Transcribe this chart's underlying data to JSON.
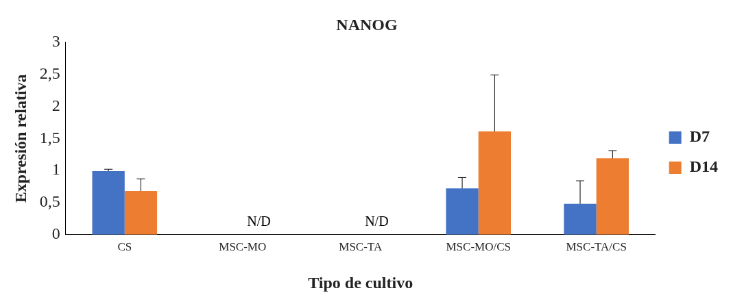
{
  "chart_data": {
    "type": "bar",
    "title": "NANOG",
    "xlabel": "Tipo de cultivo",
    "ylabel": "Expresión relativa",
    "categories": [
      "CS",
      "MSC-MO",
      "MSC-TA",
      "MSC-MO/CS",
      "MSC-TA/CS"
    ],
    "series": [
      {
        "name": "D7",
        "color": "#4472c4",
        "values": [
          0.99,
          null,
          null,
          0.72,
          0.48
        ],
        "errors": [
          [
            0.99,
            1.02
          ],
          null,
          null,
          [
            0.72,
            0.89
          ],
          [
            0.48,
            0.84
          ]
        ]
      },
      {
        "name": "D14",
        "color": "#ed7d31",
        "values": [
          0.68,
          null,
          null,
          1.61,
          1.19
        ],
        "errors": [
          [
            0.68,
            0.87
          ],
          null,
          null,
          [
            1.61,
            2.49
          ],
          [
            1.19,
            1.31
          ]
        ]
      }
    ],
    "ylim": [
      0,
      3
    ],
    "yticks": [
      0,
      {
        "value": 0.5,
        "label": "0,5"
      },
      1,
      {
        "value": 1.5,
        "label": "1,5"
      },
      2,
      {
        "value": 2.5,
        "label": "2,5"
      },
      3
    ],
    "annotations": [
      "N/D",
      "N/D"
    ],
    "grid": false,
    "legend": "right"
  }
}
